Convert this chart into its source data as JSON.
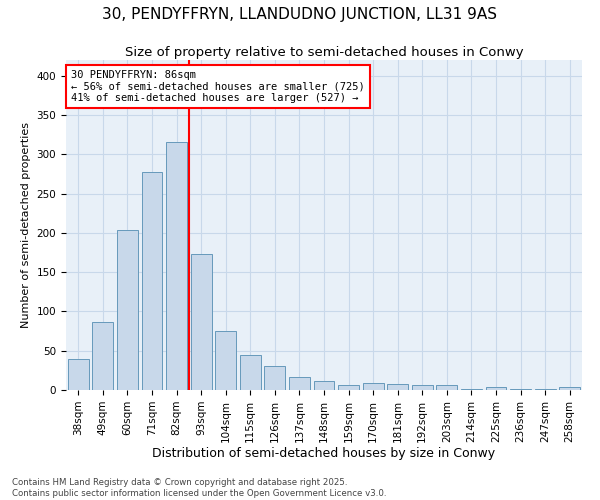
{
  "title": "30, PENDYFFRYN, LLANDUDNO JUNCTION, LL31 9AS",
  "subtitle": "Size of property relative to semi-detached houses in Conwy",
  "xlabel": "Distribution of semi-detached houses by size in Conwy",
  "ylabel": "Number of semi-detached properties",
  "categories": [
    "38sqm",
    "49sqm",
    "60sqm",
    "71sqm",
    "82sqm",
    "93sqm",
    "104sqm",
    "115sqm",
    "126sqm",
    "137sqm",
    "148sqm",
    "159sqm",
    "170sqm",
    "181sqm",
    "192sqm",
    "203sqm",
    "214sqm",
    "225sqm",
    "236sqm",
    "247sqm",
    "258sqm"
  ],
  "values": [
    40,
    86,
    204,
    278,
    315,
    173,
    75,
    44,
    30,
    17,
    11,
    7,
    9,
    8,
    6,
    6,
    1,
    4,
    1,
    1,
    4
  ],
  "bar_color": "#c8d8ea",
  "bar_edge_color": "#6699bb",
  "vline_x": 4.5,
  "vline_color": "red",
  "vline_label": "30 PENDYFFRYN: 86sqm",
  "pct_smaller": 56,
  "pct_larger": 41,
  "n_smaller": 725,
  "n_larger": 527,
  "ylim": [
    0,
    420
  ],
  "yticks": [
    0,
    50,
    100,
    150,
    200,
    250,
    300,
    350,
    400
  ],
  "grid_color": "#c8d8ea",
  "background_color": "#e8f0f8",
  "footer": "Contains HM Land Registry data © Crown copyright and database right 2025.\nContains public sector information licensed under the Open Government Licence v3.0.",
  "title_fontsize": 11,
  "subtitle_fontsize": 9.5,
  "xlabel_fontsize": 9,
  "ylabel_fontsize": 8,
  "tick_fontsize": 7.5,
  "ann_fontsize": 7.5
}
